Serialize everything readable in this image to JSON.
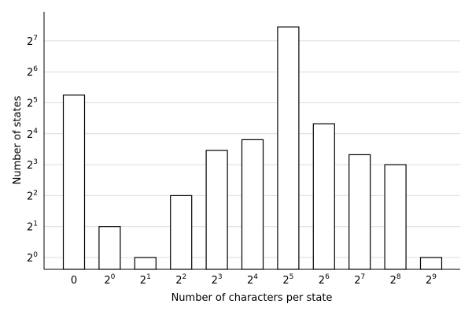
{
  "chart_data": {
    "type": "bar",
    "title": "",
    "xlabel": "Number of characters per state",
    "ylabel": "Number of states",
    "y_scale": "log2",
    "ylim": [
      0.7,
      200
    ],
    "grid": "horizontal",
    "categories": [
      "0",
      "2^0",
      "2^1",
      "2^2",
      "2^3",
      "2^4",
      "2^5",
      "2^6",
      "2^7",
      "2^8",
      "2^9"
    ],
    "category_labels": [
      {
        "base": "0",
        "exp": ""
      },
      {
        "base": "2",
        "exp": "0"
      },
      {
        "base": "2",
        "exp": "1"
      },
      {
        "base": "2",
        "exp": "2"
      },
      {
        "base": "2",
        "exp": "3"
      },
      {
        "base": "2",
        "exp": "4"
      },
      {
        "base": "2",
        "exp": "5"
      },
      {
        "base": "2",
        "exp": "6"
      },
      {
        "base": "2",
        "exp": "7"
      },
      {
        "base": "2",
        "exp": "8"
      },
      {
        "base": "2",
        "exp": "9"
      }
    ],
    "values": [
      38,
      2,
      1,
      4,
      11,
      14,
      175,
      20,
      10,
      8,
      1
    ],
    "yticks": [
      {
        "value": 1,
        "base": "2",
        "exp": "0"
      },
      {
        "value": 2,
        "base": "2",
        "exp": "1"
      },
      {
        "value": 4,
        "base": "2",
        "exp": "2"
      },
      {
        "value": 8,
        "base": "2",
        "exp": "3"
      },
      {
        "value": 16,
        "base": "2",
        "exp": "4"
      },
      {
        "value": 32,
        "base": "2",
        "exp": "5"
      },
      {
        "value": 64,
        "base": "2",
        "exp": "6"
      },
      {
        "value": 128,
        "base": "2",
        "exp": "7"
      }
    ],
    "colors": {
      "bar_fill": "#ffffff",
      "bar_edge": "#000000",
      "grid": "#dcdcdc"
    }
  }
}
